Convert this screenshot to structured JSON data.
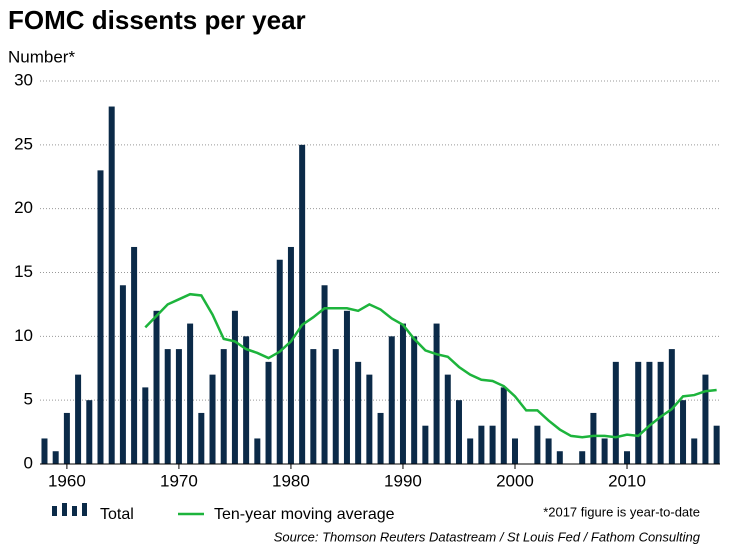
{
  "chart_data": {
    "type": "bar",
    "title": "FOMC dissents per year",
    "y_label": "Number*",
    "note": "*2017 figure is year-to-date",
    "source": "Source: Thomson Reuters Datastream / St Louis Fed / Fathom Consulting",
    "x": [
      1958,
      1959,
      1960,
      1961,
      1962,
      1963,
      1964,
      1965,
      1966,
      1967,
      1968,
      1969,
      1970,
      1971,
      1972,
      1973,
      1974,
      1975,
      1976,
      1977,
      1978,
      1979,
      1980,
      1981,
      1982,
      1983,
      1984,
      1985,
      1986,
      1987,
      1988,
      1989,
      1990,
      1991,
      1992,
      1993,
      1994,
      1995,
      1996,
      1997,
      1998,
      1999,
      2000,
      2001,
      2002,
      2003,
      2004,
      2005,
      2006,
      2007,
      2008,
      2009,
      2010,
      2011,
      2012,
      2013,
      2014,
      2015,
      2016,
      2017,
      2018
    ],
    "series": [
      {
        "name": "Total",
        "type": "bar",
        "color": "#0b2a48",
        "values": [
          2,
          1,
          4,
          7,
          5,
          23,
          28,
          14,
          17,
          6,
          12,
          9,
          9,
          11,
          4,
          7,
          9,
          12,
          10,
          2,
          8,
          16,
          17,
          25,
          9,
          14,
          9,
          12,
          8,
          7,
          4,
          10,
          11,
          10,
          3,
          11,
          7,
          5,
          2,
          3,
          3,
          6,
          2,
          0,
          3,
          2,
          1,
          0,
          1,
          4,
          2,
          8,
          1,
          8,
          8,
          8,
          9,
          5,
          2,
          7,
          3
        ]
      },
      {
        "name": "Ten-year moving average",
        "type": "line",
        "color": "#1db43c",
        "values": [
          null,
          null,
          null,
          null,
          null,
          null,
          null,
          null,
          null,
          10.7,
          11.6,
          12.5,
          12.9,
          13.3,
          13.2,
          11.7,
          9.8,
          9.6,
          9.0,
          8.7,
          8.3,
          8.8,
          9.6,
          10.9,
          11.5,
          12.2,
          12.2,
          12.2,
          12.0,
          12.5,
          12.1,
          11.4,
          10.9,
          9.8,
          8.9,
          8.6,
          8.4,
          7.6,
          7.0,
          6.6,
          6.5,
          6.1,
          5.3,
          4.2,
          4.2,
          3.4,
          2.7,
          2.2,
          2.1,
          2.2,
          2.2,
          2.1,
          2.3,
          2.2,
          3.0,
          3.7,
          4.3,
          5.3,
          5.4,
          5.7,
          5.8
        ]
      }
    ],
    "xlim": [
      1957.6,
      2018.3
    ],
    "xticks": [
      1960,
      1970,
      1980,
      1990,
      2000,
      2010
    ],
    "ylim": [
      0,
      30
    ],
    "yticks": [
      0,
      5,
      10,
      15,
      20,
      25,
      30
    ],
    "grid": true
  }
}
